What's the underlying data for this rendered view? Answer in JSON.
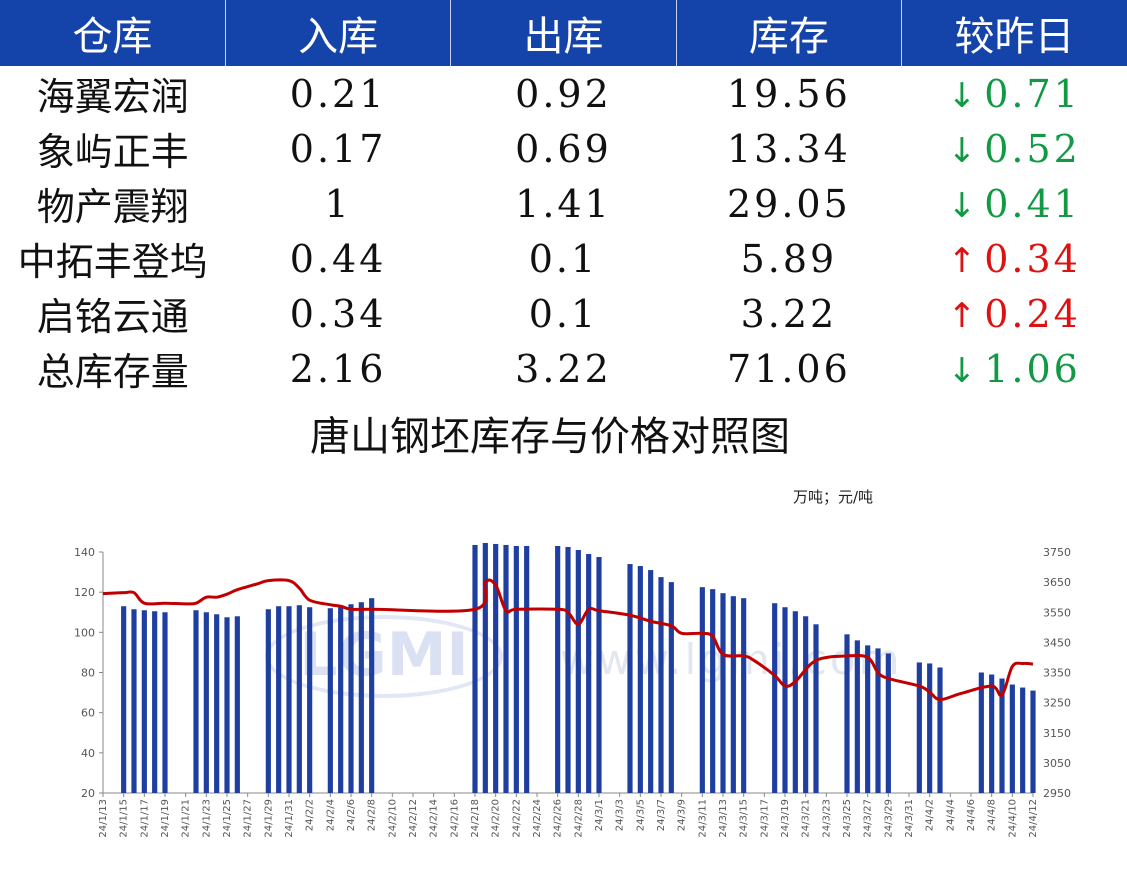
{
  "table": {
    "headers": [
      "仓库",
      "入库",
      "出库",
      "库存",
      "较昨日"
    ],
    "rows": [
      {
        "name": "海翼宏润",
        "in": "0.21",
        "out": "0.92",
        "stock": "19.56",
        "dir": "down",
        "arrow": "↓",
        "change": "0.71"
      },
      {
        "name": "象屿正丰",
        "in": "0.17",
        "out": "0.69",
        "stock": "13.34",
        "dir": "down",
        "arrow": "↓",
        "change": "0.52"
      },
      {
        "name": "物产震翔",
        "in": "1",
        "out": "1.41",
        "stock": "29.05",
        "dir": "down",
        "arrow": "↓",
        "change": "0.41"
      },
      {
        "name": "中拓丰登坞",
        "in": "0.44",
        "out": "0.1",
        "stock": "5.89",
        "dir": "up",
        "arrow": "↑",
        "change": "0.34"
      },
      {
        "name": "启铭云通",
        "in": "0.34",
        "out": "0.1",
        "stock": "3.22",
        "dir": "up",
        "arrow": "↑",
        "change": "0.24"
      },
      {
        "name": "总库存量",
        "in": "2.16",
        "out": "3.22",
        "stock": "71.06",
        "dir": "down",
        "arrow": "↓",
        "change": "1.06"
      }
    ]
  },
  "colors": {
    "header_bg": "#1443aa",
    "bar": "#1f3fa0",
    "line": "#c00000",
    "down": "#119944",
    "up": "#dd1111"
  },
  "watermark": {
    "logo": "LGMI",
    "text": "www.lgmi.com"
  },
  "chart_data": {
    "type": "bar+line",
    "title": "唐山钢坯库存与价格对照图",
    "unit_label": "万吨；元/吨",
    "y_left": {
      "min": 20,
      "max": 140,
      "ticks": [
        "20",
        "40",
        "60",
        "80",
        "100",
        "120",
        "140"
      ]
    },
    "y_right": {
      "min": 2950,
      "max": 3750,
      "ticks": [
        "2950",
        "3050",
        "3150",
        "3250",
        "3350",
        "3450",
        "3550",
        "3650",
        "3750"
      ]
    },
    "x_start": "2024-01-13",
    "x_end": "2024-04-12",
    "x_ticks": [
      "24/1/13",
      "24/1/15",
      "24/1/17",
      "24/1/19",
      "24/1/21",
      "24/1/23",
      "24/1/25",
      "24/1/27",
      "24/1/29",
      "24/1/31",
      "24/2/2",
      "24/2/4",
      "24/2/6",
      "24/2/8",
      "24/2/10",
      "24/2/12",
      "24/2/14",
      "24/2/16",
      "24/2/18",
      "24/2/20",
      "24/2/22",
      "24/2/24",
      "24/2/26",
      "24/2/28",
      "24/3/1",
      "24/3/3",
      "24/3/5",
      "24/3/7",
      "24/3/9",
      "24/3/11",
      "24/3/13",
      "24/3/15",
      "24/3/17",
      "24/3/19",
      "24/3/21",
      "24/3/23",
      "24/3/25",
      "24/3/27",
      "24/3/29",
      "24/3/31",
      "24/4/2",
      "24/4/4",
      "24/4/6",
      "24/4/8",
      "24/4/10",
      "24/4/12"
    ],
    "stock_series": {
      "name": "库存",
      "points": [
        [
          "2024-01-15",
          113
        ],
        [
          "2024-01-16",
          111.5
        ],
        [
          "2024-01-17",
          111
        ],
        [
          "2024-01-18",
          110.5
        ],
        [
          "2024-01-19",
          110
        ],
        [
          "2024-01-22",
          111
        ],
        [
          "2024-01-23",
          110
        ],
        [
          "2024-01-24",
          109
        ],
        [
          "2024-01-25",
          107.5
        ],
        [
          "2024-01-26",
          108
        ],
        [
          "2024-01-29",
          111.5
        ],
        [
          "2024-01-30",
          113
        ],
        [
          "2024-01-31",
          113
        ],
        [
          "2024-02-01",
          113.5
        ],
        [
          "2024-02-02",
          112.5
        ],
        [
          "2024-02-04",
          112
        ],
        [
          "2024-02-05",
          113.5
        ],
        [
          "2024-02-06",
          114
        ],
        [
          "2024-02-07",
          115
        ],
        [
          "2024-02-08",
          117
        ],
        [
          "2024-02-18",
          143.5
        ],
        [
          "2024-02-19",
          144.5
        ],
        [
          "2024-02-20",
          144
        ],
        [
          "2024-02-21",
          143.5
        ],
        [
          "2024-02-22",
          143
        ],
        [
          "2024-02-23",
          143
        ],
        [
          "2024-02-26",
          143
        ],
        [
          "2024-02-27",
          142.5
        ],
        [
          "2024-02-28",
          141
        ],
        [
          "2024-02-29",
          139
        ],
        [
          "2024-03-01",
          137.5
        ],
        [
          "2024-03-04",
          134
        ],
        [
          "2024-03-05",
          133
        ],
        [
          "2024-03-06",
          131
        ],
        [
          "2024-03-07",
          127.5
        ],
        [
          "2024-03-08",
          125
        ],
        [
          "2024-03-11",
          122.5
        ],
        [
          "2024-03-12",
          121.5
        ],
        [
          "2024-03-13",
          119.5
        ],
        [
          "2024-03-14",
          118
        ],
        [
          "2024-03-15",
          117
        ],
        [
          "2024-03-18",
          114.5
        ],
        [
          "2024-03-19",
          112.5
        ],
        [
          "2024-03-20",
          110.5
        ],
        [
          "2024-03-21",
          108
        ],
        [
          "2024-03-22",
          104
        ],
        [
          "2024-03-25",
          99
        ],
        [
          "2024-03-26",
          96
        ],
        [
          "2024-03-27",
          93.5
        ],
        [
          "2024-03-28",
          92
        ],
        [
          "2024-03-29",
          89.5
        ],
        [
          "2024-04-01",
          85
        ],
        [
          "2024-04-02",
          84.5
        ],
        [
          "2024-04-03",
          82.5
        ],
        [
          "2024-04-07",
          80
        ],
        [
          "2024-04-08",
          79
        ],
        [
          "2024-04-09",
          77
        ],
        [
          "2024-04-10",
          74
        ],
        [
          "2024-04-11",
          72.5
        ],
        [
          "2024-04-12",
          71
        ]
      ]
    },
    "price_series": {
      "name": "价格",
      "points": [
        [
          "2024-01-13",
          3612
        ],
        [
          "2024-01-15",
          3615
        ],
        [
          "2024-01-16",
          3615
        ],
        [
          "2024-01-17",
          3580
        ],
        [
          "2024-01-19",
          3580
        ],
        [
          "2024-01-21",
          3578
        ],
        [
          "2024-01-22",
          3580
        ],
        [
          "2024-01-23",
          3600
        ],
        [
          "2024-01-24",
          3600
        ],
        [
          "2024-01-25",
          3610
        ],
        [
          "2024-01-26",
          3625
        ],
        [
          "2024-01-28",
          3645
        ],
        [
          "2024-01-29",
          3655
        ],
        [
          "2024-01-31",
          3655
        ],
        [
          "2024-02-01",
          3630
        ],
        [
          "2024-02-02",
          3590
        ],
        [
          "2024-02-04",
          3575
        ],
        [
          "2024-02-05",
          3570
        ],
        [
          "2024-02-06",
          3560
        ],
        [
          "2024-02-08",
          3560
        ],
        [
          "2024-02-18",
          3560
        ],
        [
          "2024-02-19",
          3650
        ],
        [
          "2024-02-20",
          3640
        ],
        [
          "2024-02-21",
          3555
        ],
        [
          "2024-02-22",
          3560
        ],
        [
          "2024-02-26",
          3560
        ],
        [
          "2024-02-27",
          3550
        ],
        [
          "2024-02-28",
          3510
        ],
        [
          "2024-02-29",
          3560
        ],
        [
          "2024-03-01",
          3555
        ],
        [
          "2024-03-04",
          3540
        ],
        [
          "2024-03-06",
          3520
        ],
        [
          "2024-03-08",
          3505
        ],
        [
          "2024-03-09",
          3480
        ],
        [
          "2024-03-11",
          3480
        ],
        [
          "2024-03-12",
          3470
        ],
        [
          "2024-03-13",
          3410
        ],
        [
          "2024-03-15",
          3405
        ],
        [
          "2024-03-16",
          3390
        ],
        [
          "2024-03-18",
          3340
        ],
        [
          "2024-03-19",
          3305
        ],
        [
          "2024-03-20",
          3320
        ],
        [
          "2024-03-22",
          3390
        ],
        [
          "2024-03-25",
          3405
        ],
        [
          "2024-03-27",
          3400
        ],
        [
          "2024-03-28",
          3350
        ],
        [
          "2024-03-29",
          3330
        ],
        [
          "2024-04-01",
          3305
        ],
        [
          "2024-04-02",
          3285
        ],
        [
          "2024-04-03",
          3260
        ],
        [
          "2024-04-05",
          3280
        ],
        [
          "2024-04-08",
          3305
        ],
        [
          "2024-04-09",
          3275
        ],
        [
          "2024-04-10",
          3370
        ],
        [
          "2024-04-11",
          3380
        ],
        [
          "2024-04-12",
          3378
        ]
      ]
    }
  }
}
